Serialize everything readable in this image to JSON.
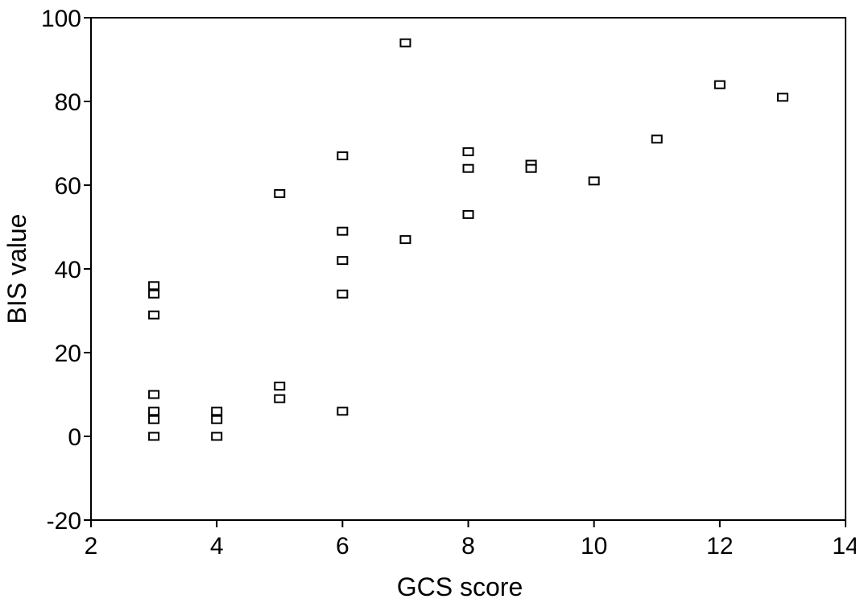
{
  "chart_data": {
    "type": "scatter",
    "title": "",
    "xlabel": "GCS score",
    "ylabel": "BIS value",
    "xlim": [
      2,
      14
    ],
    "ylim": [
      -20,
      100
    ],
    "xticks": [
      2,
      4,
      6,
      8,
      10,
      12,
      14
    ],
    "yticks": [
      -20,
      0,
      20,
      40,
      60,
      80,
      100
    ],
    "grid": false,
    "legend": "none",
    "marker": "open-square",
    "points": [
      {
        "x": 3,
        "y": 36
      },
      {
        "x": 3,
        "y": 34
      },
      {
        "x": 3,
        "y": 29
      },
      {
        "x": 3,
        "y": 10
      },
      {
        "x": 3,
        "y": 6
      },
      {
        "x": 3,
        "y": 4
      },
      {
        "x": 3,
        "y": 0
      },
      {
        "x": 4,
        "y": 6
      },
      {
        "x": 4,
        "y": 4
      },
      {
        "x": 4,
        "y": 0
      },
      {
        "x": 5,
        "y": 58
      },
      {
        "x": 5,
        "y": 12
      },
      {
        "x": 5,
        "y": 9
      },
      {
        "x": 6,
        "y": 67
      },
      {
        "x": 6,
        "y": 49
      },
      {
        "x": 6,
        "y": 42
      },
      {
        "x": 6,
        "y": 34
      },
      {
        "x": 6,
        "y": 6
      },
      {
        "x": 7,
        "y": 94
      },
      {
        "x": 7,
        "y": 47
      },
      {
        "x": 8,
        "y": 68
      },
      {
        "x": 8,
        "y": 64
      },
      {
        "x": 8,
        "y": 53
      },
      {
        "x": 9,
        "y": 65
      },
      {
        "x": 9,
        "y": 64
      },
      {
        "x": 10,
        "y": 61
      },
      {
        "x": 11,
        "y": 71
      },
      {
        "x": 12,
        "y": 84
      },
      {
        "x": 13,
        "y": 81
      }
    ]
  }
}
